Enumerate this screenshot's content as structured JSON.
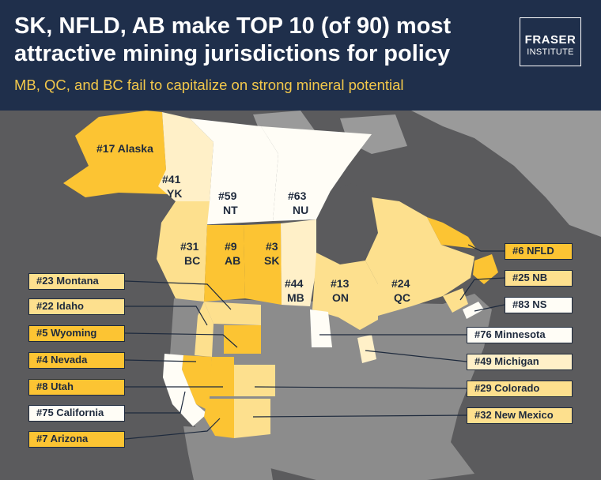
{
  "header": {
    "title_line1": "SK, NFLD, AB make TOP 10 (of 90) most",
    "title_line2": "attractive mining jurisdictions for policy",
    "subtitle": "MB, QC, and BC fail to capitalize on strong mineral potential",
    "logo_line1": "FRASER",
    "logo_line2": "INSTITUTE"
  },
  "colors": {
    "header_background": "#1f2f4b",
    "subtitle": "#f3c84b",
    "water": "#5b5b5d",
    "land_unranked": "#8c8c8c",
    "top_tier": "#fcc433",
    "high_tier": "#fde08e",
    "mid_tier": "#fff0c8",
    "low_tier": "#fffdf6",
    "label_border": "#1e2a3d"
  },
  "map_labels": {
    "alaska": "#17 Alaska",
    "yk_rank": "#41",
    "yk_code": "YK",
    "nt_rank": "#59",
    "nt_code": "NT",
    "nu_rank": "#63",
    "nu_code": "NU",
    "bc_rank": "#31",
    "bc_code": "BC",
    "ab_rank": "#9",
    "ab_code": "AB",
    "sk_rank": "#3",
    "sk_code": "SK",
    "mb_rank": "#44",
    "mb_code": "MB",
    "on_rank": "#13",
    "on_code": "ON",
    "qc_rank": "#24",
    "qc_code": "QC"
  },
  "callouts_left": [
    {
      "label": "#23 Montana",
      "tier": "high"
    },
    {
      "label": "#22 Idaho",
      "tier": "high"
    },
    {
      "label": "#5 Wyoming",
      "tier": "top"
    },
    {
      "label": "#4 Nevada",
      "tier": "top"
    },
    {
      "label": "#8 Utah",
      "tier": "top"
    },
    {
      "label": "#75 California",
      "tier": "low"
    },
    {
      "label": "#7 Arizona",
      "tier": "top"
    }
  ],
  "callouts_right": [
    {
      "label": "#6 NFLD",
      "tier": "top"
    },
    {
      "label": "#25 NB",
      "tier": "high"
    },
    {
      "label": "#83 NS",
      "tier": "low"
    },
    {
      "label": "#76 Minnesota",
      "tier": "low"
    },
    {
      "label": "#49 Michigan",
      "tier": "mid"
    },
    {
      "label": "#29 Colorado",
      "tier": "high"
    },
    {
      "label": "#32 New Mexico",
      "tier": "high"
    }
  ]
}
